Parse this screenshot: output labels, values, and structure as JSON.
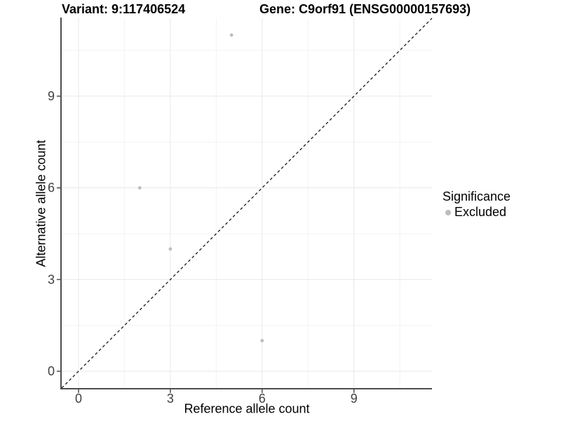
{
  "figure": {
    "variant_title": "Variant: 9:117406524",
    "gene_title": "Gene: C9orf91 (ENSG00000157693)"
  },
  "chart_data": {
    "type": "scatter",
    "title": "Variant: 9:117406524 / Gene: C9orf91 (ENSG00000157693)",
    "xlabel": "Reference allele count",
    "ylabel": "Alternative allele count",
    "xlim": [
      -0.55,
      11.55
    ],
    "ylim": [
      -0.55,
      11.55
    ],
    "x_ticks": [
      0,
      3,
      6,
      9
    ],
    "y_ticks": [
      0,
      3,
      6,
      9
    ],
    "x_minor_ticks": [
      1.5,
      4.5,
      7.5,
      10.5
    ],
    "y_minor_ticks": [
      1.5,
      4.5,
      7.5,
      10.5
    ],
    "grid": "major and minor gridlines, light gray on white panel",
    "series": [
      {
        "name": "Excluded",
        "marker": "circle",
        "color": "#bdbdbd",
        "points": [
          {
            "x": 5,
            "y": 11
          },
          {
            "x": 2,
            "y": 6
          },
          {
            "x": 3,
            "y": 4
          },
          {
            "x": 6,
            "y": 1
          }
        ]
      }
    ],
    "reference_line": {
      "kind": "identity y = x",
      "style": "dashed",
      "color": "#1a1a1a"
    },
    "legend": {
      "title": "Significance",
      "position": "right",
      "entries": [
        {
          "label": "Excluded",
          "color": "#bdbdbd"
        }
      ]
    }
  },
  "colors": {
    "background": "#ffffff",
    "grid_major": "#e8e8e8",
    "grid_minor": "#f3f3f3",
    "axis_line": "#4d4d4d",
    "tick_label": "#404040",
    "title_text": "#000000",
    "point": "#bdbdbd"
  }
}
